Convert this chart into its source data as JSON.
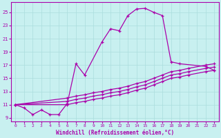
{
  "xlabel": "Windchill (Refroidissement éolien,°C)",
  "bg_color": "#c8f0f0",
  "line_color": "#aa00aa",
  "xlim": [
    -0.5,
    23.5
  ],
  "ylim": [
    8.5,
    26.5
  ],
  "xticks": [
    0,
    1,
    2,
    3,
    4,
    5,
    6,
    7,
    8,
    9,
    10,
    11,
    12,
    13,
    14,
    15,
    16,
    17,
    18,
    19,
    20,
    21,
    22,
    23
  ],
  "yticks": [
    9,
    11,
    13,
    15,
    17,
    19,
    21,
    23,
    25
  ],
  "grid_color": "#aadddd",
  "lines": [
    {
      "x": [
        0,
        1,
        2,
        3,
        4,
        5,
        6,
        7,
        8,
        10,
        11,
        12,
        13,
        14,
        15,
        16,
        17,
        18,
        19,
        22,
        23
      ],
      "y": [
        11.0,
        10.5,
        9.5,
        10.2,
        9.5,
        9.5,
        11.2,
        17.2,
        15.5,
        20.5,
        22.5,
        22.2,
        24.5,
        25.5,
        25.6,
        25.0,
        24.5,
        17.5,
        17.2,
        16.8,
        16.2
      ]
    },
    {
      "x": [
        0,
        6,
        7,
        8,
        9,
        10,
        11,
        12,
        13,
        14,
        15,
        16,
        17,
        18,
        19,
        20,
        22,
        23
      ],
      "y": [
        11.0,
        12.0,
        12.3,
        12.5,
        12.8,
        13.0,
        13.3,
        13.5,
        13.8,
        14.2,
        14.5,
        15.0,
        15.5,
        16.0,
        16.2,
        16.5,
        17.0,
        17.2
      ]
    },
    {
      "x": [
        0,
        6,
        7,
        8,
        9,
        10,
        11,
        12,
        13,
        14,
        15,
        16,
        17,
        18,
        19,
        20,
        22,
        23
      ],
      "y": [
        11.0,
        11.5,
        11.8,
        12.0,
        12.3,
        12.5,
        12.8,
        13.0,
        13.3,
        13.7,
        14.0,
        14.5,
        15.0,
        15.5,
        15.7,
        16.0,
        16.5,
        16.7
      ]
    },
    {
      "x": [
        0,
        6,
        7,
        8,
        9,
        10,
        11,
        12,
        13,
        14,
        15,
        16,
        17,
        18,
        19,
        20,
        22,
        23
      ],
      "y": [
        11.0,
        11.0,
        11.3,
        11.5,
        11.8,
        12.0,
        12.3,
        12.5,
        12.8,
        13.2,
        13.5,
        14.0,
        14.5,
        15.0,
        15.2,
        15.5,
        16.0,
        16.2
      ]
    }
  ]
}
